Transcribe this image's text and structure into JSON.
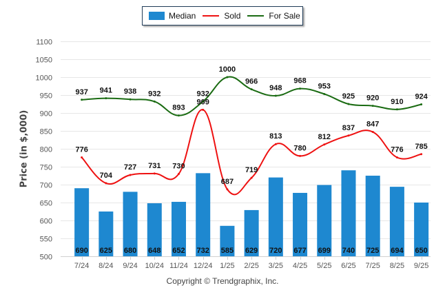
{
  "chart_data": {
    "type": "bar",
    "title": "",
    "xlabel": "",
    "ylabel": "Price (in $,000)",
    "ylim": [
      500,
      1100
    ],
    "yticks": [
      500,
      550,
      600,
      650,
      700,
      750,
      800,
      850,
      900,
      950,
      1000,
      1050,
      1100
    ],
    "grid": true,
    "legend_position": "top-center",
    "categories": [
      "7/24",
      "8/24",
      "9/24",
      "10/24",
      "11/24",
      "12/24",
      "1/25",
      "2/25",
      "3/25",
      "4/25",
      "5/25",
      "6/25",
      "7/25",
      "8/25",
      "9/25"
    ],
    "series": [
      {
        "name": "Median",
        "type": "bar",
        "color": "#1e88d0",
        "values": [
          690,
          625,
          680,
          648,
          652,
          732,
          585,
          629,
          720,
          677,
          699,
          740,
          725,
          694,
          650
        ]
      },
      {
        "name": "Sold",
        "type": "line",
        "color": "#ee1111",
        "values": [
          776,
          704,
          727,
          731,
          730,
          909,
          687,
          719,
          813,
          780,
          812,
          837,
          847,
          776,
          785
        ]
      },
      {
        "name": "For Sale",
        "type": "line",
        "color": "#1a6b12",
        "values": [
          937,
          941,
          938,
          932,
          893,
          932,
          1000,
          966,
          948,
          968,
          953,
          925,
          920,
          910,
          924
        ]
      }
    ]
  },
  "legend": {
    "median": "Median",
    "sold": "Sold",
    "for_sale": "For Sale"
  },
  "copyright": "Copyright © Trendgraphix, Inc."
}
